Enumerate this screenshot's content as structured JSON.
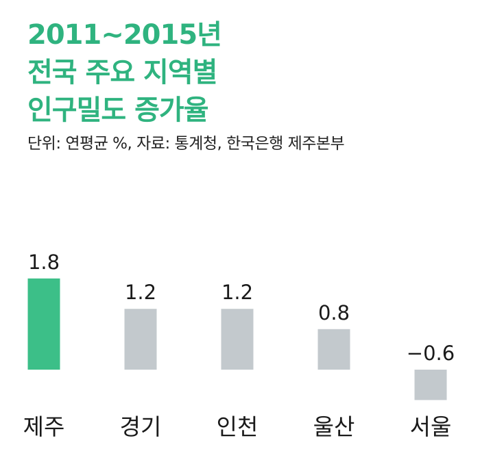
{
  "title": {
    "line1": "2011~2015년",
    "line2": "전국 주요 지역별",
    "line3": "인구밀도 증가율"
  },
  "subtitle": "단위: 연평균 %, 자료: 통계청, 한국은행 제주본부",
  "colors": {
    "accent": "#2fb37f",
    "highlight_bar": "#3cbf88",
    "bar": "#c3c9cd",
    "text": "#1a1a1a"
  },
  "chart_data": {
    "type": "bar",
    "categories": [
      "제주",
      "경기",
      "인천",
      "울산",
      "서울"
    ],
    "values": [
      1.8,
      1.2,
      1.2,
      0.8,
      -0.6
    ],
    "value_labels": [
      "1.8",
      "1.2",
      "1.2",
      "0.8",
      "−0.6"
    ],
    "highlight_index": 0,
    "title": "2011~2015년 전국 주요 지역별 인구밀도 증가율",
    "subtitle": "단위: 연평균 %, 자료: 통계청, 한국은행 제주본부",
    "grid": false,
    "legend": "none"
  }
}
